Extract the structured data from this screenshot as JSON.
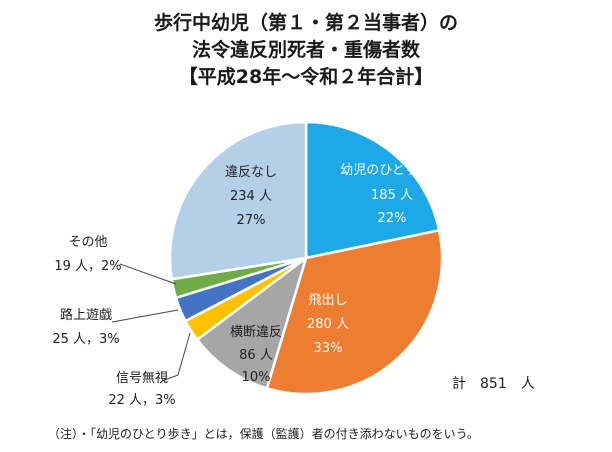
{
  "title": {
    "line1": "歩行中幼児（第１・第２当事者）の",
    "line2": "法令違反別死者・重傷者数",
    "line3": "【平成28年～令和２年合計】"
  },
  "chart_data": {
    "type": "pie",
    "title": "歩行中幼児（第１・第２当事者）の法令違反別死者・重傷者数【平成28年～令和２年合計】",
    "unit": "人",
    "total": 851,
    "slices": [
      {
        "label": "幼児のひとり歩き",
        "value": 185,
        "count_text": "185 人",
        "percent_text": "22%",
        "color": "#1ea8e8"
      },
      {
        "label": "飛出し",
        "value": 280,
        "count_text": "280 人",
        "percent_text": "33%",
        "color": "#ed7d31"
      },
      {
        "label": "横断違反",
        "value": 86,
        "count_text": "86 人",
        "percent_text": "10%",
        "color": "#a6a6a6"
      },
      {
        "label": "信号無視",
        "value": 22,
        "count_text": "22 人，3%",
        "percent_text": "",
        "color": "#ffc000"
      },
      {
        "label": "路上遊戯",
        "value": 25,
        "count_text": "25 人，3%",
        "percent_text": "",
        "color": "#4472c4"
      },
      {
        "label": "その他",
        "value": 19,
        "count_text": "19 人，2%",
        "percent_text": "",
        "color": "#70ad47"
      },
      {
        "label": "違反なし",
        "value": 234,
        "count_text": "234 人",
        "percent_text": "27%",
        "color": "#b4cfe8"
      }
    ]
  },
  "total_label": "計　851　人",
  "footnote": "（注）・「幼児のひとり歩き」とは，保護（監護）者の付き添わないものをいう。"
}
